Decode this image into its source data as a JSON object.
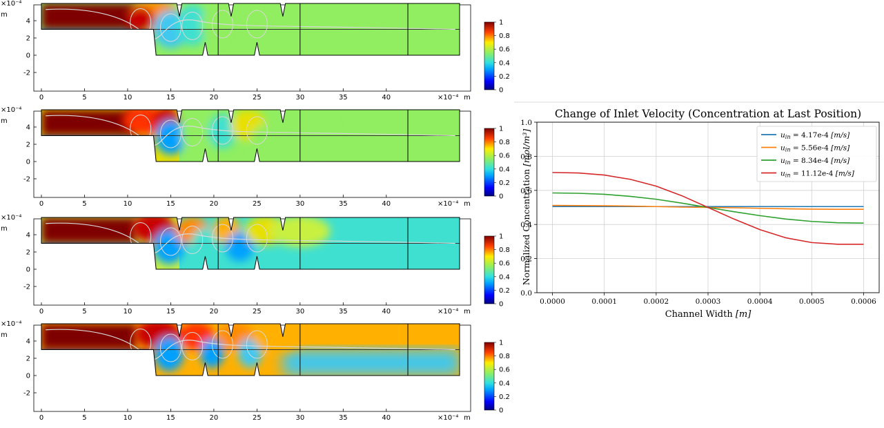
{
  "chart_data": [
    {
      "type": "heatmap",
      "panel": 1,
      "x_scale_label": "×10⁻⁴",
      "x_unit": "m",
      "y_scale_label": "×10⁻⁴",
      "y_unit": "m",
      "x_ticks": [
        0,
        5,
        10,
        15,
        20,
        25,
        30,
        35,
        40
      ],
      "y_ticks": [
        -2,
        0,
        2,
        4
      ],
      "xlim": [
        0,
        48.5
      ],
      "ylim": [
        -2,
        6
      ],
      "colorbar": {
        "min": 0,
        "max": 1,
        "ticks": [
          "1",
          "0.8",
          "0.6",
          "0.4",
          "0.2",
          "0"
        ]
      }
    },
    {
      "type": "heatmap",
      "panel": 2,
      "x_scale_label": "×10⁻⁴",
      "x_unit": "m",
      "y_scale_label": "×10⁻⁴",
      "y_unit": "m",
      "x_ticks": [
        0,
        5,
        10,
        15,
        20,
        25,
        30,
        35,
        40
      ],
      "y_ticks": [
        -2,
        0,
        2,
        4
      ],
      "xlim": [
        0,
        48.5
      ],
      "ylim": [
        -2,
        6
      ],
      "colorbar": {
        "min": 0,
        "max": 1,
        "ticks": [
          "1",
          "0.8",
          "0.6",
          "0.4",
          "0.2",
          "0"
        ]
      }
    },
    {
      "type": "heatmap",
      "panel": 3,
      "x_scale_label": "×10⁻⁴",
      "x_unit": "m",
      "y_scale_label": "×10⁻⁴",
      "y_unit": "m",
      "x_ticks": [
        0,
        5,
        10,
        15,
        20,
        25,
        30,
        35,
        40
      ],
      "y_ticks": [
        -2,
        0,
        2,
        4
      ],
      "xlim": [
        0,
        48.5
      ],
      "ylim": [
        -2,
        6
      ],
      "colorbar": {
        "min": 0,
        "max": 1,
        "ticks": [
          "1",
          "0.8",
          "0.6",
          "0.4",
          "0.2",
          "0"
        ]
      }
    },
    {
      "type": "heatmap",
      "panel": 4,
      "x_scale_label": "×10⁻⁴",
      "x_unit": "m",
      "y_scale_label": "×10⁻⁴",
      "y_unit": "m",
      "x_ticks": [
        0,
        5,
        10,
        15,
        20,
        25,
        30,
        35,
        40
      ],
      "y_ticks": [
        -2,
        0,
        2,
        4
      ],
      "xlim": [
        0,
        48.5
      ],
      "ylim": [
        -2,
        6
      ],
      "colorbar": {
        "min": 0,
        "max": 1,
        "ticks": [
          "1",
          "0.8",
          "0.6",
          "0.4",
          "0.2",
          "0"
        ]
      }
    },
    {
      "type": "line",
      "title": "Change of Inlet Velocity (Concentration at Last Position)",
      "xlabel_text": "Channel Width ",
      "xlabel_unit": "[m]",
      "ylabel_text": "Normalized Concentration ",
      "ylabel_unit": "[mol/m³]",
      "xlim": [
        -3e-05,
        0.00063
      ],
      "ylim": [
        0.0,
        1.0
      ],
      "x_ticks": [
        "0.0000",
        "0.0001",
        "0.0002",
        "0.0003",
        "0.0004",
        "0.0005",
        "0.0006"
      ],
      "x_tick_values": [
        0.0,
        0.0001,
        0.0002,
        0.0003,
        0.0004,
        0.0005,
        0.0006
      ],
      "y_ticks": [
        "0.0",
        "0.2",
        "0.4",
        "0.6",
        "0.8",
        "1.0"
      ],
      "y_tick_values": [
        0.0,
        0.2,
        0.4,
        0.6,
        0.8,
        1.0
      ],
      "grid": true,
      "legend_position": "top-right",
      "x": [
        0.0,
        5e-05,
        0.0001,
        0.00015,
        0.0002,
        0.00025,
        0.0003,
        0.00035,
        0.0004,
        0.00045,
        0.0005,
        0.00055,
        0.0006
      ],
      "series": [
        {
          "name": "u_in = 4.17e-4 [m/s]",
          "var": "u",
          "sub": "in",
          "value_text": " = 4.17e-4 ",
          "unit_text": "[m/s]",
          "color": "#1f77b4",
          "values": [
            0.505,
            0.505,
            0.505,
            0.505,
            0.505,
            0.505,
            0.505,
            0.505,
            0.505,
            0.505,
            0.505,
            0.505,
            0.505
          ]
        },
        {
          "name": "u_in = 5.56e-4 [m/s]",
          "var": "u",
          "sub": "in",
          "value_text": " = 5.56e-4 ",
          "unit_text": "[m/s]",
          "color": "#ff7f0e",
          "values": [
            0.512,
            0.511,
            0.51,
            0.508,
            0.505,
            0.502,
            0.5,
            0.498,
            0.495,
            0.492,
            0.49,
            0.489,
            0.489
          ]
        },
        {
          "name": "u_in = 8.34e-4 [m/s]",
          "var": "u",
          "sub": "in",
          "value_text": " = 8.34e-4 ",
          "unit_text": "[m/s]",
          "color": "#2ca02c",
          "values": [
            0.585,
            0.583,
            0.577,
            0.565,
            0.548,
            0.525,
            0.5,
            0.475,
            0.452,
            0.432,
            0.418,
            0.41,
            0.408
          ]
        },
        {
          "name": "u_in = 11.12e-4 [m/s]",
          "var": "u",
          "sub": "in",
          "value_text": " = 11.12e-4 ",
          "unit_text": "[m/s]",
          "color": "#d62728",
          "values": [
            0.705,
            0.702,
            0.69,
            0.665,
            0.625,
            0.568,
            0.5,
            0.432,
            0.37,
            0.322,
            0.294,
            0.284,
            0.284
          ]
        }
      ]
    }
  ]
}
